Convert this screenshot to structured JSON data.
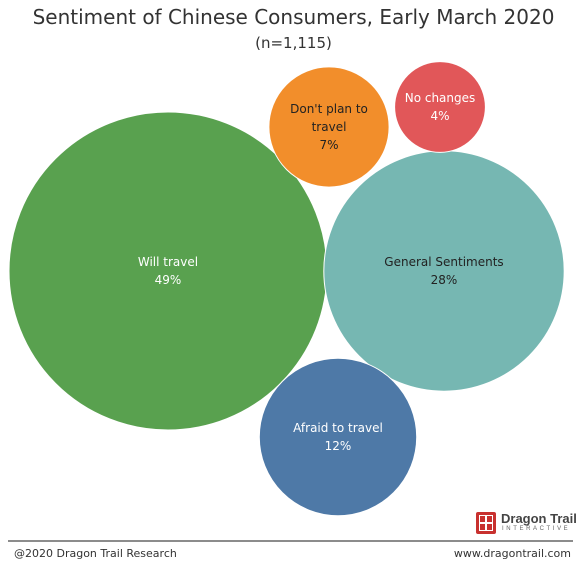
{
  "title": "Sentiment of Chinese Consumers, Early March 2020",
  "subtitle": "(n=1,115)",
  "chart_data": {
    "type": "bubble",
    "title": "Sentiment of Chinese Consumers, Early March 2020",
    "subtitle": "(n=1,115)",
    "unit": "%",
    "bubbles": [
      {
        "label": "Will travel",
        "value": 49,
        "value_label": "49%",
        "color": "#59a14f",
        "text_color": "#ffffff"
      },
      {
        "label": "General Sentiments",
        "value": 28,
        "value_label": "28%",
        "color": "#76b7b2",
        "text_color": "#222222"
      },
      {
        "label": "Afraid to travel",
        "value": 12,
        "value_label": "12%",
        "color": "#4e79a7",
        "text_color": "#ffffff"
      },
      {
        "label": "Don't plan to travel",
        "value": 7,
        "value_label": "7%",
        "color": "#f28e2b",
        "text_color": "#222222"
      },
      {
        "label": "No changes",
        "value": 4,
        "value_label": "4%",
        "color": "#e15759",
        "text_color": "#ffffff"
      }
    ]
  },
  "brand": {
    "name": "Dragon Trail",
    "tagline": "INTERACTIVE"
  },
  "footer": {
    "copyright": "@2020 Dragon Trail Research",
    "website": "www.dragontrail.com"
  }
}
